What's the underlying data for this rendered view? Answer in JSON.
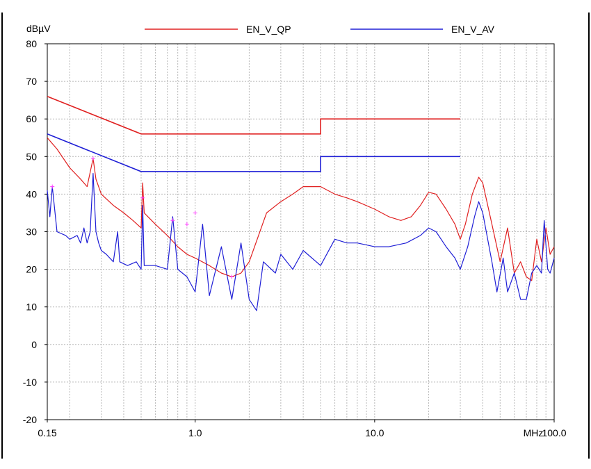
{
  "chart_data": {
    "type": "line",
    "xscale": "log",
    "yunit_label": "dBµV",
    "xunit_label": "MHz",
    "xlim": [
      0.15,
      100.0
    ],
    "ylim": [
      -20,
      80
    ],
    "x_ticks": [
      {
        "value": 0.15,
        "label": "0.15"
      },
      {
        "value": 1.0,
        "label": "1.0"
      },
      {
        "value": 10.0,
        "label": "10.0"
      },
      {
        "value": 100.0,
        "label": "100.0"
      }
    ],
    "y_ticks": [
      {
        "value": 80,
        "label": "80"
      },
      {
        "value": 70,
        "label": "70"
      },
      {
        "value": 60,
        "label": "60"
      },
      {
        "value": 50,
        "label": "50"
      },
      {
        "value": 40,
        "label": "40"
      },
      {
        "value": 30,
        "label": "30"
      },
      {
        "value": 20,
        "label": "20"
      },
      {
        "value": 10,
        "label": "10"
      },
      {
        "value": 0,
        "label": "0"
      },
      {
        "value": -10,
        "label": "-10"
      },
      {
        "value": -20,
        "label": "-20"
      }
    ],
    "grid": true,
    "legend_position": "top",
    "colors": {
      "qp": "#e02020",
      "av": "#1f1fd6",
      "peak_marker": "#ff40ff"
    },
    "limit_lines": [
      {
        "name": "EN_V_QP",
        "color": "#e02020",
        "points": [
          [
            0.15,
            66
          ],
          [
            0.5,
            56
          ],
          [
            5.0,
            56
          ],
          [
            5.0,
            60
          ],
          [
            30.0,
            60
          ]
        ]
      },
      {
        "name": "EN_V_AV",
        "color": "#1f1fd6",
        "points": [
          [
            0.15,
            56
          ],
          [
            0.5,
            46
          ],
          [
            5.0,
            46
          ],
          [
            5.0,
            50
          ],
          [
            30.0,
            50
          ]
        ]
      }
    ],
    "series": [
      {
        "color": "#e02020",
        "points": [
          [
            0.15,
            55
          ],
          [
            0.17,
            52
          ],
          [
            0.2,
            47
          ],
          [
            0.23,
            44
          ],
          [
            0.25,
            42
          ],
          [
            0.27,
            49.5
          ],
          [
            0.28,
            44
          ],
          [
            0.3,
            40
          ],
          [
            0.35,
            37
          ],
          [
            0.4,
            35
          ],
          [
            0.45,
            33
          ],
          [
            0.5,
            31
          ],
          [
            0.51,
            43
          ],
          [
            0.52,
            35
          ],
          [
            0.6,
            32
          ],
          [
            0.7,
            29
          ],
          [
            0.8,
            26
          ],
          [
            0.9,
            24
          ],
          [
            1.0,
            23
          ],
          [
            1.2,
            21
          ],
          [
            1.4,
            19
          ],
          [
            1.6,
            18
          ],
          [
            1.8,
            19
          ],
          [
            2.0,
            22
          ],
          [
            2.5,
            35
          ],
          [
            3.0,
            38
          ],
          [
            3.5,
            40
          ],
          [
            4.0,
            42
          ],
          [
            5.0,
            42
          ],
          [
            6.0,
            40
          ],
          [
            7.0,
            39
          ],
          [
            8.0,
            38
          ],
          [
            10.0,
            36
          ],
          [
            12.0,
            34
          ],
          [
            14.0,
            33
          ],
          [
            16.0,
            34
          ],
          [
            18.0,
            37
          ],
          [
            20.0,
            40.5
          ],
          [
            22.0,
            40
          ],
          [
            25.0,
            36
          ],
          [
            28.0,
            32
          ],
          [
            30.0,
            28
          ],
          [
            32.0,
            32
          ],
          [
            35.0,
            40
          ],
          [
            38.0,
            44.5
          ],
          [
            40.0,
            43
          ],
          [
            45.0,
            32
          ],
          [
            50.0,
            22
          ],
          [
            55.0,
            31
          ],
          [
            60.0,
            19
          ],
          [
            65.0,
            22
          ],
          [
            70.0,
            18
          ],
          [
            75.0,
            17
          ],
          [
            80.0,
            28
          ],
          [
            85.0,
            22
          ],
          [
            90.0,
            31
          ],
          [
            95.0,
            24
          ],
          [
            100.0,
            26
          ]
        ]
      },
      {
        "color": "#1f1fd6",
        "points": [
          [
            0.15,
            41
          ],
          [
            0.155,
            34
          ],
          [
            0.16,
            42
          ],
          [
            0.17,
            30
          ],
          [
            0.19,
            29
          ],
          [
            0.2,
            28
          ],
          [
            0.22,
            29
          ],
          [
            0.23,
            27
          ],
          [
            0.24,
            31
          ],
          [
            0.25,
            27
          ],
          [
            0.26,
            30
          ],
          [
            0.27,
            45.5
          ],
          [
            0.28,
            30
          ],
          [
            0.29,
            27
          ],
          [
            0.3,
            25
          ],
          [
            0.32,
            24
          ],
          [
            0.35,
            22
          ],
          [
            0.37,
            30
          ],
          [
            0.38,
            22
          ],
          [
            0.42,
            21
          ],
          [
            0.47,
            22
          ],
          [
            0.5,
            20
          ],
          [
            0.51,
            37
          ],
          [
            0.52,
            21
          ],
          [
            0.6,
            21
          ],
          [
            0.7,
            20
          ],
          [
            0.75,
            34
          ],
          [
            0.8,
            20
          ],
          [
            0.9,
            18
          ],
          [
            1.0,
            14
          ],
          [
            1.1,
            32
          ],
          [
            1.2,
            13
          ],
          [
            1.4,
            26
          ],
          [
            1.6,
            12
          ],
          [
            1.8,
            27
          ],
          [
            2.0,
            12
          ],
          [
            2.2,
            9
          ],
          [
            2.4,
            22
          ],
          [
            2.8,
            19
          ],
          [
            3.0,
            24
          ],
          [
            3.5,
            20
          ],
          [
            4.0,
            25
          ],
          [
            5.0,
            21
          ],
          [
            6.0,
            28
          ],
          [
            7.0,
            27
          ],
          [
            8.0,
            27
          ],
          [
            10.0,
            26
          ],
          [
            12.0,
            26
          ],
          [
            15.0,
            27
          ],
          [
            18.0,
            29
          ],
          [
            20.0,
            31
          ],
          [
            22.0,
            30
          ],
          [
            25.0,
            26
          ],
          [
            28.0,
            23
          ],
          [
            30.0,
            20
          ],
          [
            33.0,
            26
          ],
          [
            36.0,
            34
          ],
          [
            38.0,
            38
          ],
          [
            40.0,
            35
          ],
          [
            45.0,
            22
          ],
          [
            48.0,
            14
          ],
          [
            52.0,
            23
          ],
          [
            55.0,
            14
          ],
          [
            60.0,
            19
          ],
          [
            65.0,
            12
          ],
          [
            70.0,
            12
          ],
          [
            75.0,
            19
          ],
          [
            80.0,
            21
          ],
          [
            85.0,
            19
          ],
          [
            88.0,
            33
          ],
          [
            92.0,
            20
          ],
          [
            95.0,
            19
          ],
          [
            100.0,
            23
          ]
        ]
      }
    ],
    "peak_markers": [
      [
        0.16,
        42
      ],
      [
        0.27,
        49.5
      ],
      [
        0.51,
        39
      ],
      [
        0.75,
        33
      ],
      [
        0.9,
        32
      ],
      [
        1.0,
        35
      ],
      [
        1.6,
        18
      ]
    ]
  }
}
